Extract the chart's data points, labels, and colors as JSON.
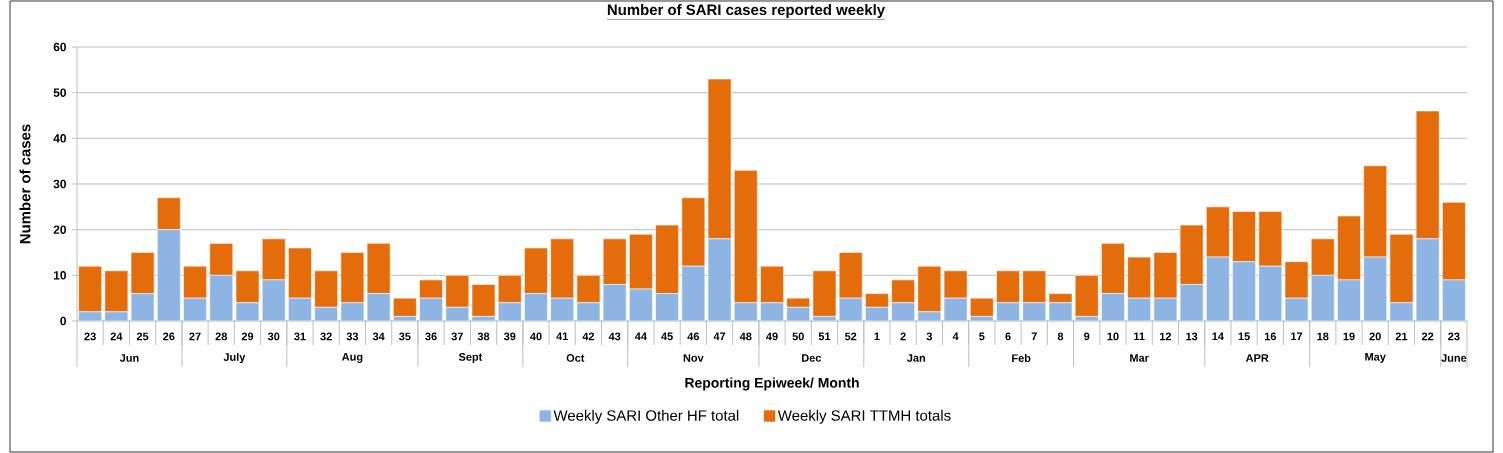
{
  "chart_data": {
    "type": "bar",
    "stacked": true,
    "title": "Number of SARI cases reported weekly",
    "xlabel": "Reporting Epiweek/ Month",
    "ylabel": "Number of cases",
    "categories": [
      "23",
      "24",
      "25",
      "26",
      "27",
      "28",
      "29",
      "30",
      "31",
      "32",
      "33",
      "34",
      "35",
      "36",
      "37",
      "38",
      "39",
      "40",
      "41",
      "42",
      "43",
      "44",
      "45",
      "46",
      "47",
      "48",
      "49",
      "50",
      "51",
      "52",
      "1",
      "2",
      "3",
      "4",
      "5",
      "6",
      "7",
      "8",
      "9",
      "10",
      "11",
      "12",
      "13",
      "14",
      "15",
      "16",
      "17",
      "18",
      "19",
      "20",
      "21",
      "22",
      "23"
    ],
    "series": [
      {
        "name": "Weekly SARI Other HF total",
        "color": "#8eb4e3",
        "values": [
          2,
          2,
          6,
          20,
          5,
          10,
          4,
          9,
          5,
          3,
          4,
          6,
          1,
          5,
          3,
          1,
          4,
          6,
          5,
          4,
          8,
          7,
          6,
          12,
          18,
          4,
          4,
          3,
          1,
          5,
          3,
          4,
          2,
          5,
          1,
          4,
          4,
          4,
          1,
          6,
          5,
          5,
          8,
          14,
          13,
          12,
          5,
          10,
          9,
          14,
          4,
          18,
          9
        ]
      },
      {
        "name": "Weekly SARI TTMH totals",
        "color": "#e46c0a",
        "values": [
          10,
          9,
          9,
          7,
          7,
          7,
          7,
          9,
          11,
          8,
          11,
          11,
          4,
          4,
          7,
          7,
          6,
          10,
          13,
          6,
          10,
          12,
          15,
          15,
          35,
          29,
          8,
          2,
          10,
          10,
          3,
          5,
          10,
          6,
          4,
          7,
          7,
          2,
          9,
          11,
          9,
          10,
          13,
          11,
          11,
          12,
          8,
          8,
          14,
          20,
          15,
          28,
          17
        ]
      }
    ],
    "ylim": [
      0,
      60
    ],
    "yticks": [
      0,
      10,
      20,
      30,
      40,
      50,
      60
    ],
    "grid": "y",
    "legend": "bottom",
    "annotations": [
      "Jun",
      "July",
      "Aug",
      "Sept",
      "Oct",
      "Nov",
      "Dec",
      "Jan",
      "Feb",
      "Mar",
      "APR",
      "May",
      "June"
    ]
  }
}
